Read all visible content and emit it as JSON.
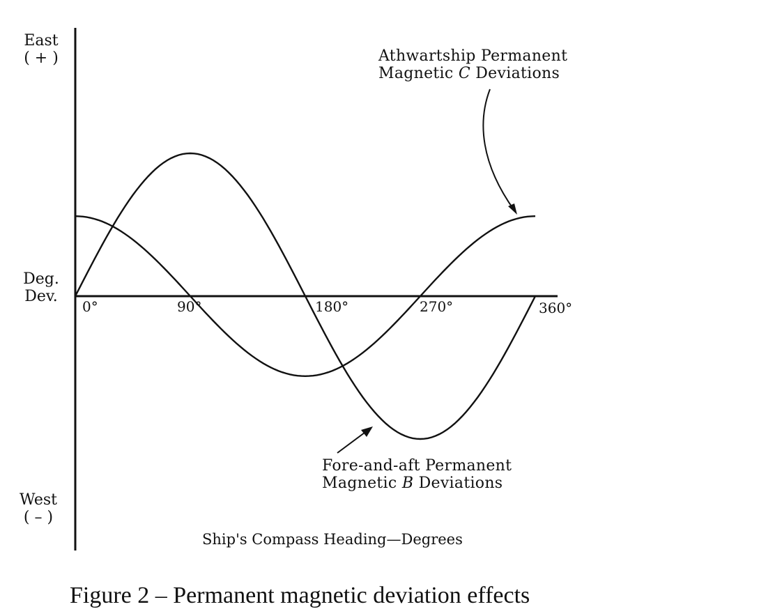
{
  "figure": {
    "caption": "Figure 2 – Permanent magnetic deviation effects"
  },
  "axes": {
    "y_top_label_line1": "East",
    "y_top_label_line2": "( + )",
    "y_mid_label_line1": "Deg.",
    "y_mid_label_line2": "Dev.",
    "y_bottom_label_line1": "West",
    "y_bottom_label_line2": "( – )",
    "x_title": "Ship's Compass Heading—Degrees",
    "x_ticks": [
      "0°",
      "90°",
      "180°",
      "270°",
      "360°"
    ]
  },
  "annotations": {
    "c_line1": "Athwartship Permanent",
    "c_line2_pre": "Magnetic ",
    "c_line2_italic": "C",
    "c_line2_post": " Deviations",
    "b_line1": "Fore-and-aft Permanent",
    "b_line2_pre": "Magnetic ",
    "b_line2_italic": "B",
    "b_line2_post": " Deviations"
  },
  "chart_data": {
    "type": "line",
    "title": "Figure 2 – Permanent magnetic deviation effects",
    "xlabel": "Ship's Compass Heading—Degrees",
    "ylabel": "Deg. Dev. (East + / West –)",
    "x": [
      0,
      45,
      90,
      135,
      180,
      225,
      270,
      315,
      360
    ],
    "xlim": [
      0,
      360
    ],
    "ylim": [
      -15,
      15
    ],
    "units_note": "relative deviation units (no numeric y-axis scale shown)",
    "grid": false,
    "legend": "none (curves labeled by annotations with arrows)",
    "series": [
      {
        "name": "Fore-and-aft Permanent Magnetic B Deviations",
        "shape": "sine",
        "amplitude": 10,
        "values": [
          0,
          7.07,
          10,
          7.07,
          0,
          -7.07,
          -10,
          -7.07,
          0
        ]
      },
      {
        "name": "Athwartship Permanent Magnetic C Deviations",
        "shape": "cosine",
        "amplitude": 5.6,
        "values": [
          5.6,
          3.96,
          0,
          -3.96,
          -5.6,
          -3.96,
          0,
          3.96,
          5.6
        ]
      }
    ]
  }
}
